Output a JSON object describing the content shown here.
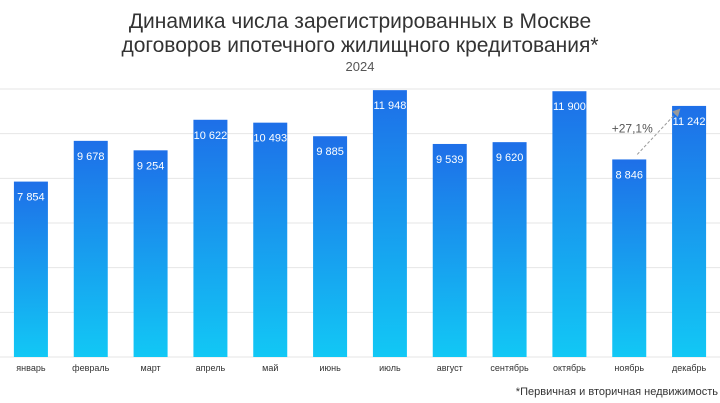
{
  "chart_data": {
    "type": "bar",
    "title_line1": "Динамика числа зарегистрированных в Москве",
    "title_line2": "договоров ипотечного жилищного кредитования*",
    "subtitle": "2024",
    "categories": [
      "январь",
      "февраль",
      "март",
      "апрель",
      "май",
      "июнь",
      "июль",
      "август",
      "сентябрь",
      "октябрь",
      "ноябрь",
      "декабрь"
    ],
    "values": [
      7854,
      9678,
      9254,
      10622,
      10493,
      9885,
      11948,
      9539,
      9620,
      11900,
      8846,
      11242
    ],
    "value_labels": [
      "7 854",
      "9 678",
      "9 254",
      "10 622",
      "10 493",
      "9 885",
      "11 948",
      "9 539",
      "9 620",
      "11 900",
      "8 846",
      "11 242"
    ],
    "ylim": [
      0,
      12000
    ],
    "grid": true,
    "colors": {
      "bar_top": "#1E6FE8",
      "bar_bottom": "#12C8F5",
      "grid": "#E6E6E6",
      "label": "#FFFFFF"
    },
    "annotation": {
      "text": "+27,1%",
      "from_category": "ноябрь",
      "to_category": "декабрь"
    },
    "footnote": "*Первичная и вторичная недвижимость"
  }
}
